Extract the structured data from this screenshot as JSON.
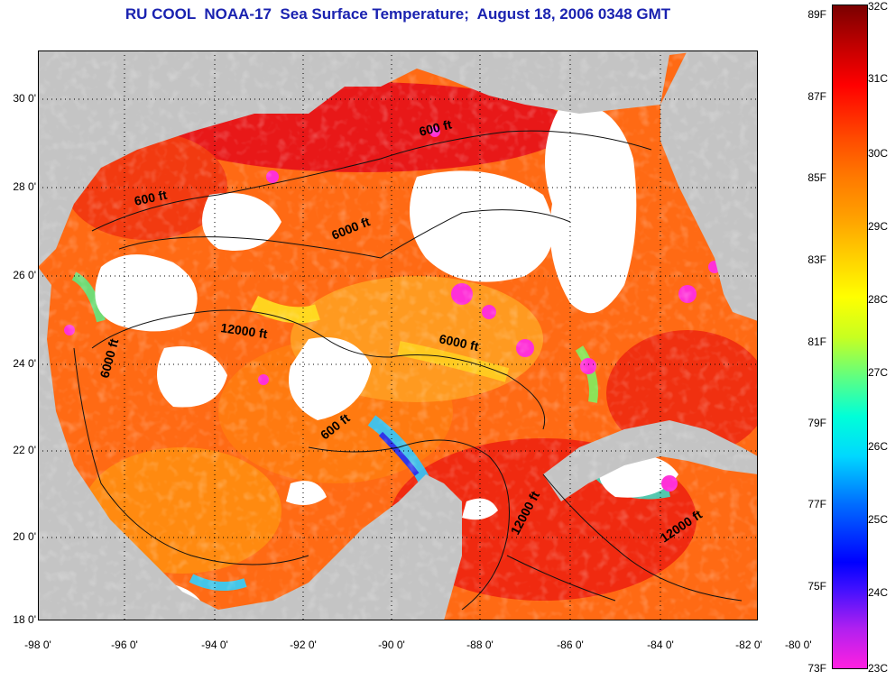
{
  "title": "RU COOL  NOAA-17  Sea Surface Temperature;  August 18, 2006 0348 GMT",
  "y_axis_labels": [
    "30 0'",
    "28 0'",
    "26 0'",
    "24 0'",
    "22 0'",
    "20 0'",
    "18 0'"
  ],
  "x_axis_labels": [
    "-98 0'",
    "-96 0'",
    "-94 0'",
    "-92 0'",
    "-90 0'",
    "-88 0'",
    "-86 0'",
    "-84 0'",
    "-82 0'",
    "-80 0'"
  ],
  "colorbar": {
    "fahrenheit": [
      "89F",
      "87F",
      "85F",
      "83F",
      "81F",
      "79F",
      "77F",
      "75F",
      "73F"
    ],
    "celsius": [
      "32C",
      "31C",
      "30C",
      "29C",
      "28C",
      "27C",
      "26C",
      "25C",
      "24C",
      "23C"
    ]
  },
  "contour_labels": {
    "a": "600 ft",
    "b": "600 ft",
    "c": "6000 ft",
    "d": "12000 ft",
    "e": "6000 ft",
    "f": "6000 ft",
    "g": "600 ft",
    "h": "12000 ft",
    "i": "12000 ft"
  },
  "colors": {
    "land": "#c4c4c4",
    "warm": "#ff5a10",
    "hot": "#e01010",
    "title": "#1a22b0"
  }
}
